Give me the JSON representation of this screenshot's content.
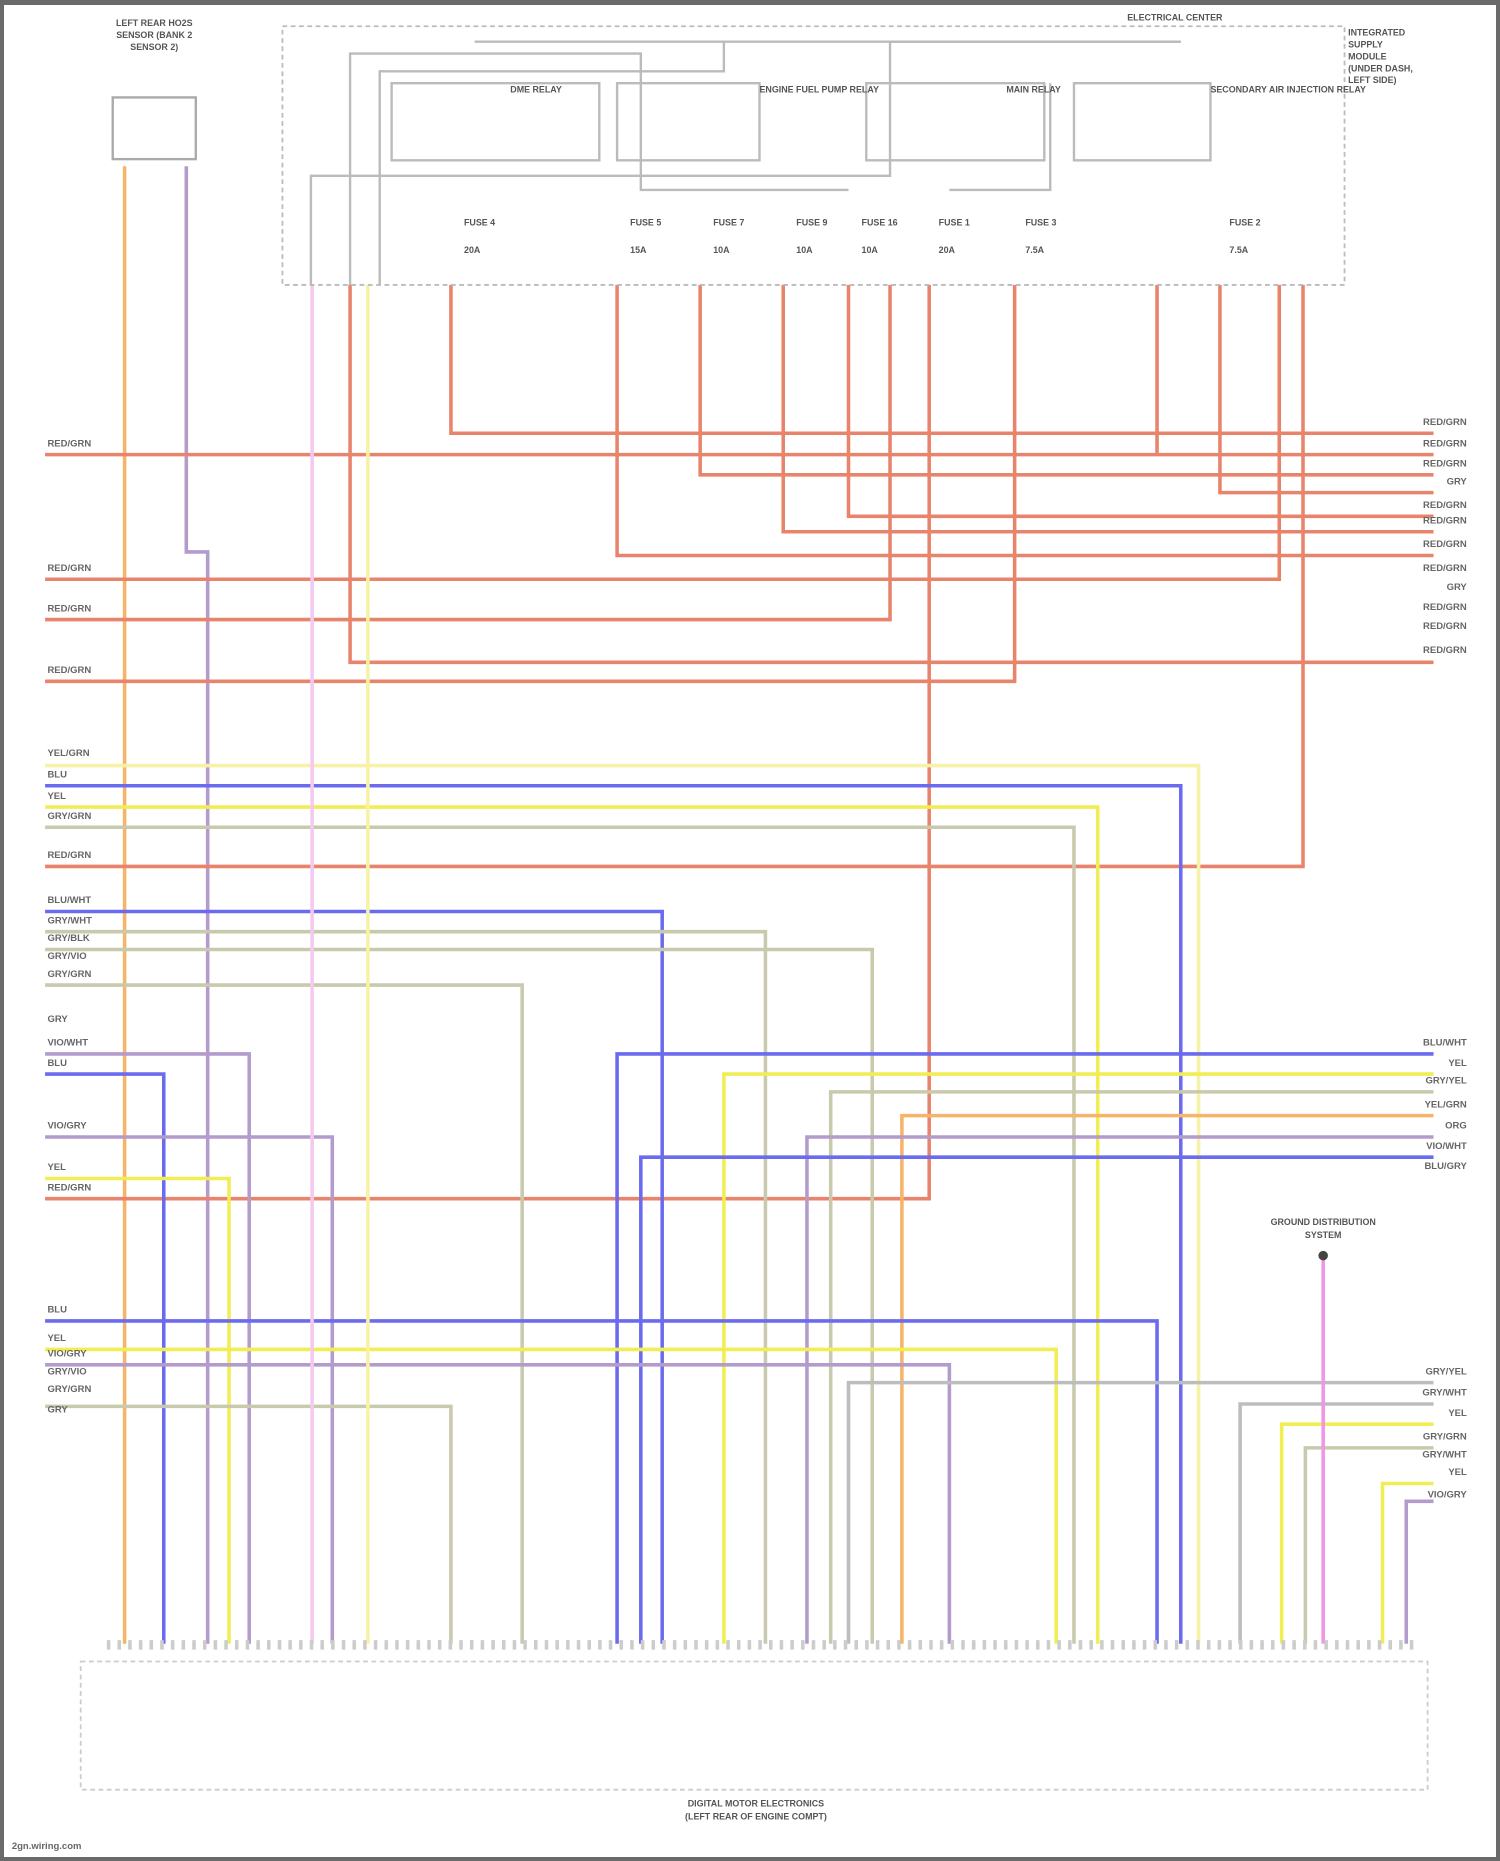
{
  "diagram": {
    "sensor_label": [
      "LEFT REAR HO2S",
      "SENSOR (BANK 2",
      "SENSOR 2)"
    ],
    "center_label": "ELECTRICAL CENTER",
    "right_note": [
      "INTEGRATED",
      "SUPPLY",
      "MODULE",
      "(UNDER DASH,",
      "LEFT SIDE)"
    ],
    "relays": [
      "DME RELAY",
      "ENGINE FUEL PUMP RELAY",
      "MAIN RELAY",
      "SECONDARY AIR INJECTION RELAY"
    ],
    "fuses": [
      {
        "name": "FUSE 4",
        "rating": "20A"
      },
      {
        "name": "FUSE 5",
        "rating": "15A"
      },
      {
        "name": "FUSE 7",
        "rating": "10A"
      },
      {
        "name": "FUSE 9",
        "rating": "10A"
      },
      {
        "name": "FUSE 16",
        "rating": "10A"
      },
      {
        "name": "FUSE 1",
        "rating": "20A"
      },
      {
        "name": "FUSE 3",
        "rating": "7.5A"
      },
      {
        "name": "FUSE 2",
        "rating": "7.5A"
      }
    ],
    "ground_label": [
      "GROUND DISTRIBUTION",
      "SYSTEM"
    ],
    "module_label": [
      "DIGITAL MOTOR ELECTRONICS",
      "(LEFT REAR OF ENGINE COMPT)"
    ],
    "footer": "2gn.wiring.com",
    "left_wire_labels": [
      "RED/GRN",
      "RED/GRN",
      "RED/GRN",
      "RED/GRN",
      "YEL/GRN",
      "BLU",
      "YEL",
      "GRY/GRN",
      "RED/GRN",
      "BLU/WHT",
      "GRY/WHT",
      "GRY/BLK",
      "GRY/VIO",
      "GRY/GRN",
      "GRY",
      "VIO/WHT",
      "BLU",
      "VIO/GRY",
      "YEL",
      "RED/GRN",
      "BLU",
      "YEL",
      "VIO/GRY",
      "GRY/VIO",
      "GRY/GRN",
      "GRY"
    ],
    "right_wire_labels": [
      "RED/GRN",
      "RED/GRN",
      "RED/GRN",
      "GRY",
      "RED/GRN",
      "RED/GRN",
      "RED/GRN",
      "RED/GRN",
      "GRY",
      "RED/GRN",
      "RED/GRN",
      "RED/GRN",
      "BLU/WHT",
      "YEL",
      "GRY/YEL",
      "YEL/GRN",
      "ORG",
      "VIO/WHT",
      "BLU/GRY",
      "GRY/YEL",
      "GRY/WHT",
      "YEL",
      "GRY/GRN",
      "GRY/WHT",
      "YEL",
      "VIO/GRY"
    ]
  },
  "wire_colors": {
    "red": "#e9846c",
    "orange": "#f6b469",
    "yellow": "#f1ee55",
    "paleyellow": "#f6f3a8",
    "blue": "#6b6bef",
    "violet": "#b39ccb",
    "pink": "#ef96e6",
    "palepink": "#f4c9ef",
    "graygreen": "#c9c9ae",
    "gray": "#bdbdbd"
  }
}
